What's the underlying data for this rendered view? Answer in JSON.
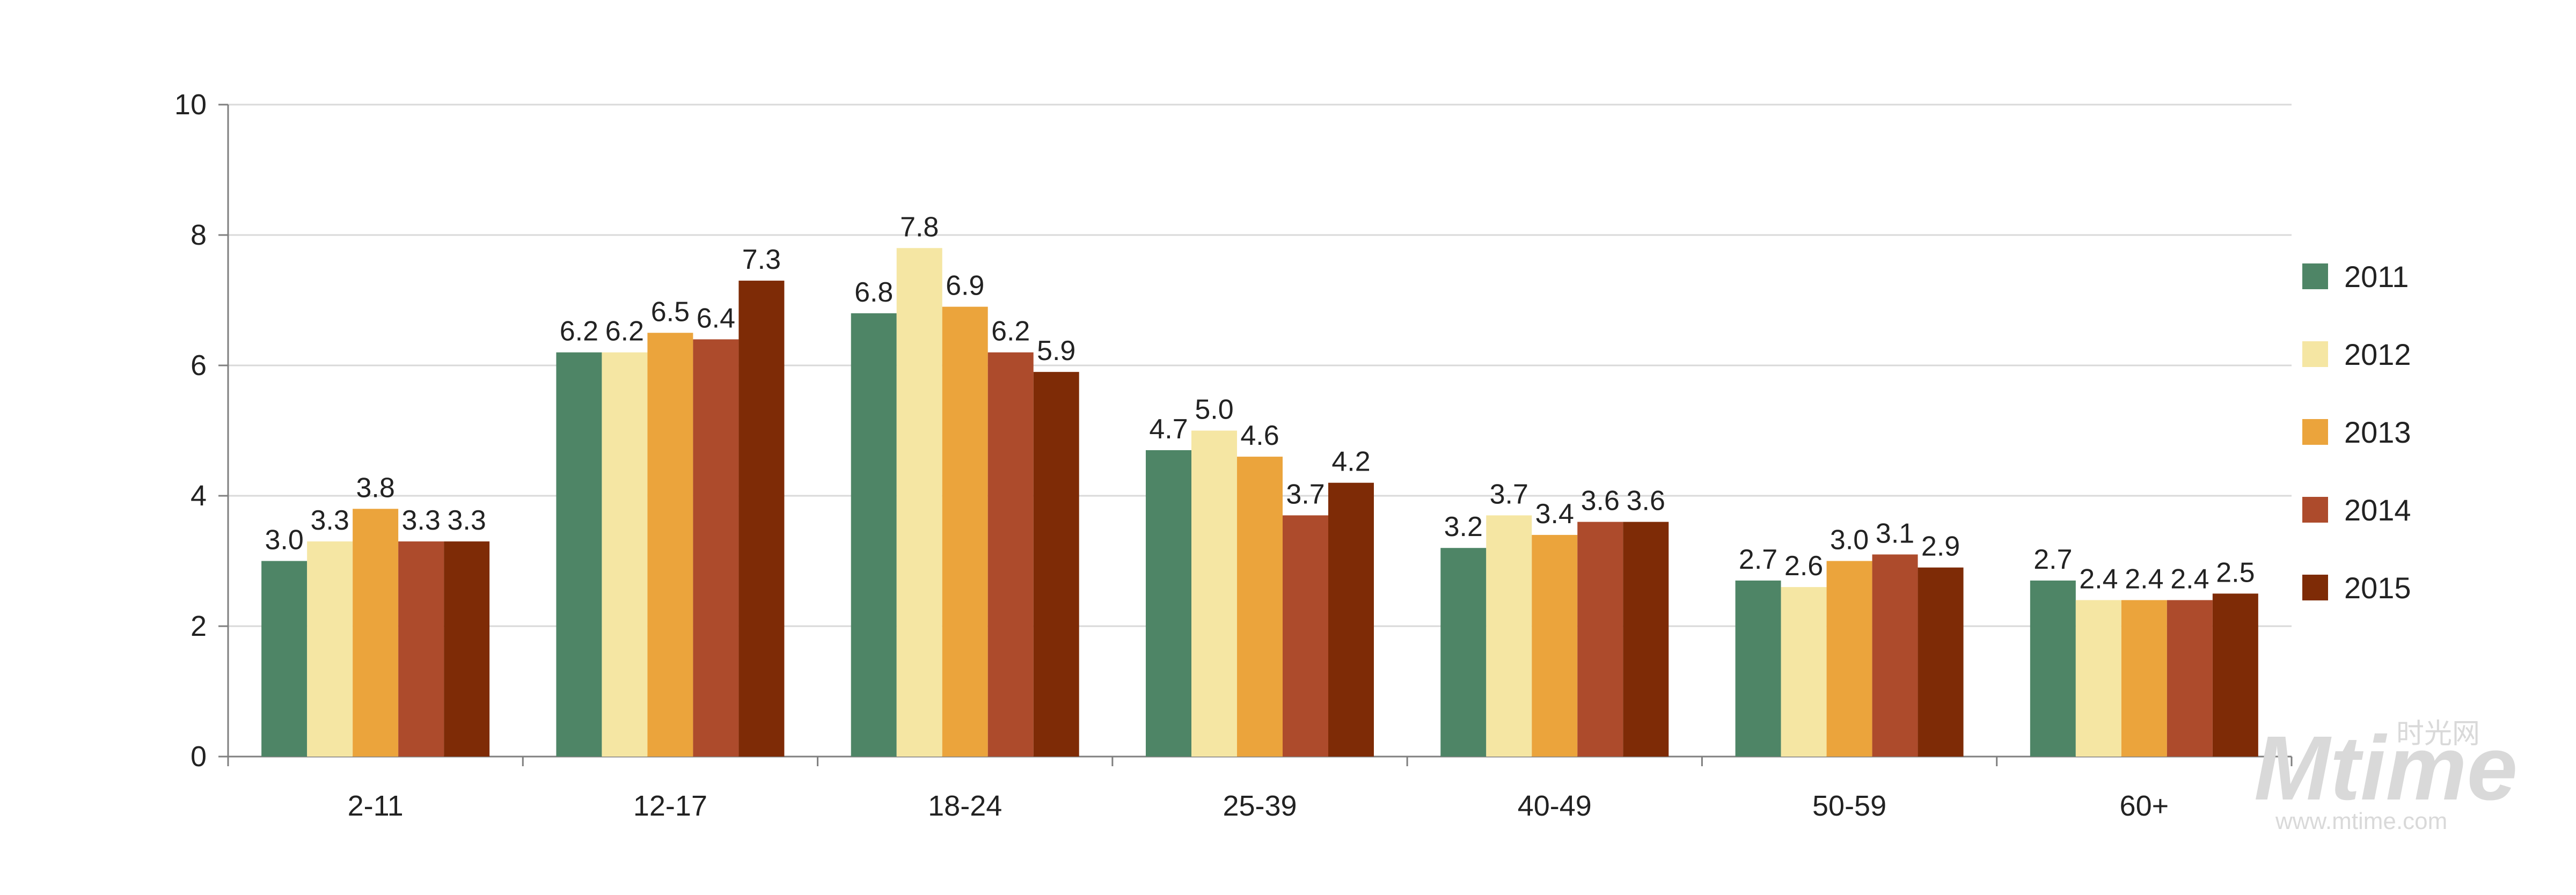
{
  "chart_data": {
    "type": "bar",
    "title": "",
    "xlabel": "",
    "ylabel": "",
    "ylim": [
      0,
      10
    ],
    "yticks": [
      0,
      2,
      4,
      6,
      8,
      10
    ],
    "grid": true,
    "legend_position": "right",
    "categories": [
      "2-11",
      "12-17",
      "18-24",
      "25-39",
      "40-49",
      "50-59",
      "60+"
    ],
    "series": [
      {
        "name": "2011",
        "color": "#4e8566",
        "values": [
          3.0,
          6.2,
          6.8,
          4.7,
          3.2,
          2.7,
          2.7
        ]
      },
      {
        "name": "2012",
        "color": "#f5e6a3",
        "values": [
          3.3,
          6.2,
          7.8,
          5.0,
          3.7,
          2.6,
          2.4
        ]
      },
      {
        "name": "2013",
        "color": "#eba43c",
        "values": [
          3.8,
          6.5,
          6.9,
          4.6,
          3.4,
          3.0,
          2.4
        ]
      },
      {
        "name": "2014",
        "color": "#ad4b2c",
        "values": [
          3.3,
          6.4,
          6.2,
          3.7,
          3.6,
          3.1,
          2.4
        ]
      },
      {
        "name": "2015",
        "color": "#7e2b06",
        "values": [
          3.3,
          7.3,
          5.9,
          4.2,
          3.6,
          2.9,
          2.5
        ]
      }
    ]
  },
  "watermark": {
    "brand": "Mtime",
    "chinese": "时光网",
    "url": "www.mtime.com"
  }
}
